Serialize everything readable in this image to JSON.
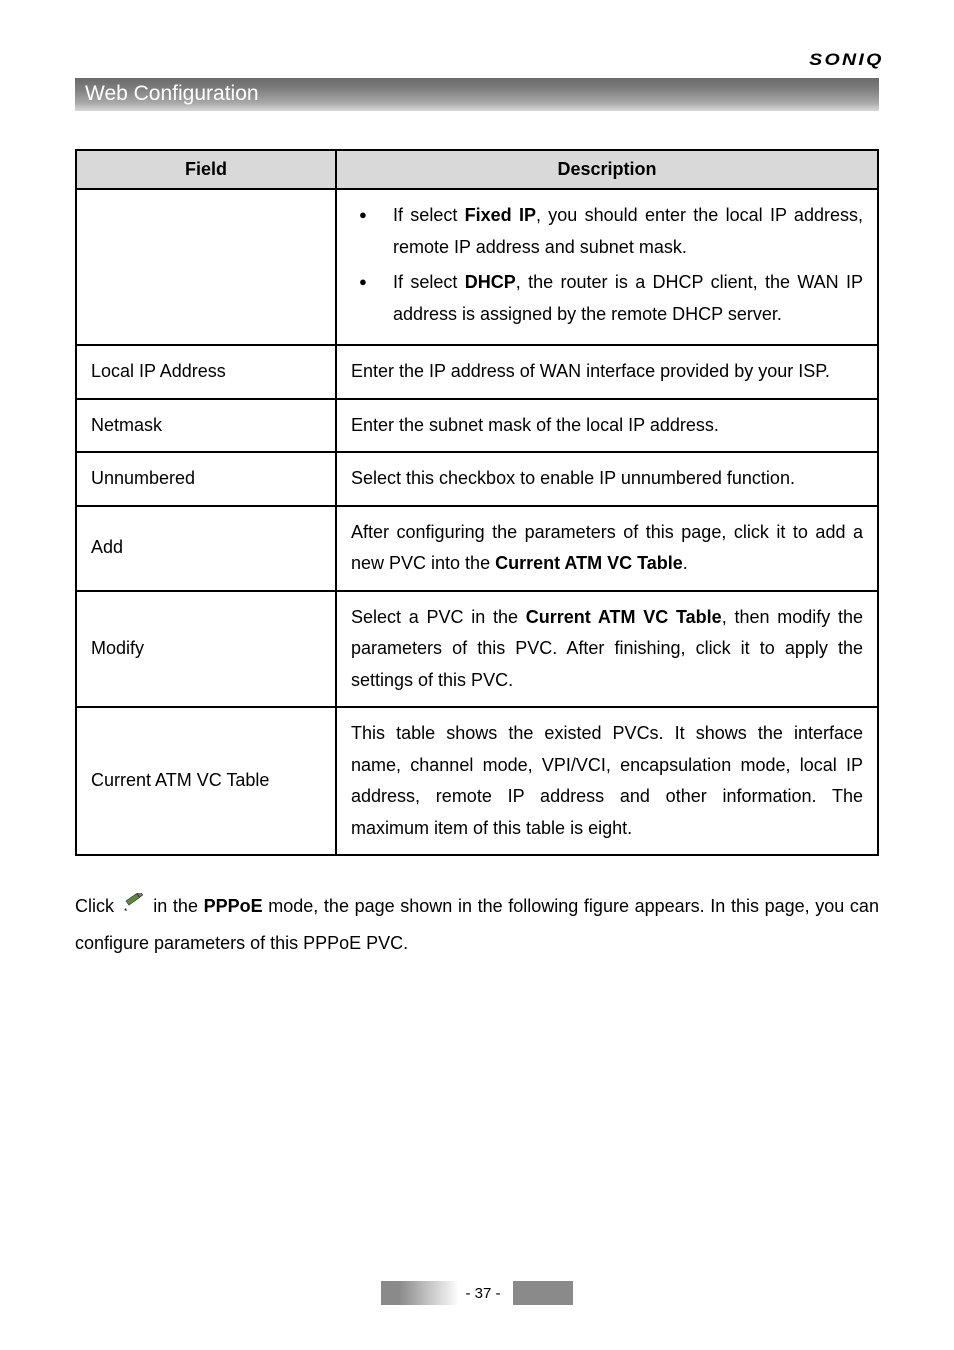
{
  "brand": "SONIQ",
  "section_title": "Web Configuration",
  "table": {
    "headers": {
      "field": "Field",
      "desc": "Description"
    },
    "rows": [
      {
        "field": "",
        "desc_type": "bullets",
        "bullets": [
          {
            "pre": "If select ",
            "bold": "Fixed IP",
            "post": ", you should enter the local IP address, remote IP address and subnet mask."
          },
          {
            "pre": "If select ",
            "bold": "DHCP",
            "post": ", the router is a DHCP client, the WAN IP address is assigned by the remote DHCP server."
          }
        ]
      },
      {
        "field": "Local IP Address",
        "desc": "Enter the IP address of WAN interface provided by your ISP."
      },
      {
        "field": "Netmask",
        "desc": "Enter the subnet mask of the local IP address."
      },
      {
        "field": "Unnumbered",
        "desc": "Select this checkbox to enable IP unnumbered function."
      },
      {
        "field": "Add",
        "desc_type": "rich",
        "pre": "After configuring the parameters of this page, click it to add a new PVC into the ",
        "bold": "Current ATM VC Table",
        "post": "."
      },
      {
        "field": "Modify",
        "desc_type": "rich",
        "pre": "Select a PVC in the ",
        "bold": "Current ATM VC Table",
        "post": ", then modify the parameters of this PVC. After finishing, click it to apply the settings of this PVC."
      },
      {
        "field": "Current ATM VC Table",
        "desc": "This table shows the existed PVCs. It shows the interface name, channel mode, VPI/VCI, encapsulation mode, local IP address, remote IP address and other information. The maximum item of this table is eight."
      }
    ]
  },
  "body_para": {
    "pre": "Click ",
    "mid1": " in the ",
    "bold": "PPPoE",
    "post": " mode, the page shown in the following figure appears. In this page, you can configure parameters of this PPPoE PVC."
  },
  "page_number": "- 37 -",
  "colors": {
    "header_bg": "#d9d9d9",
    "border": "#000000",
    "white": "#ffffff"
  }
}
